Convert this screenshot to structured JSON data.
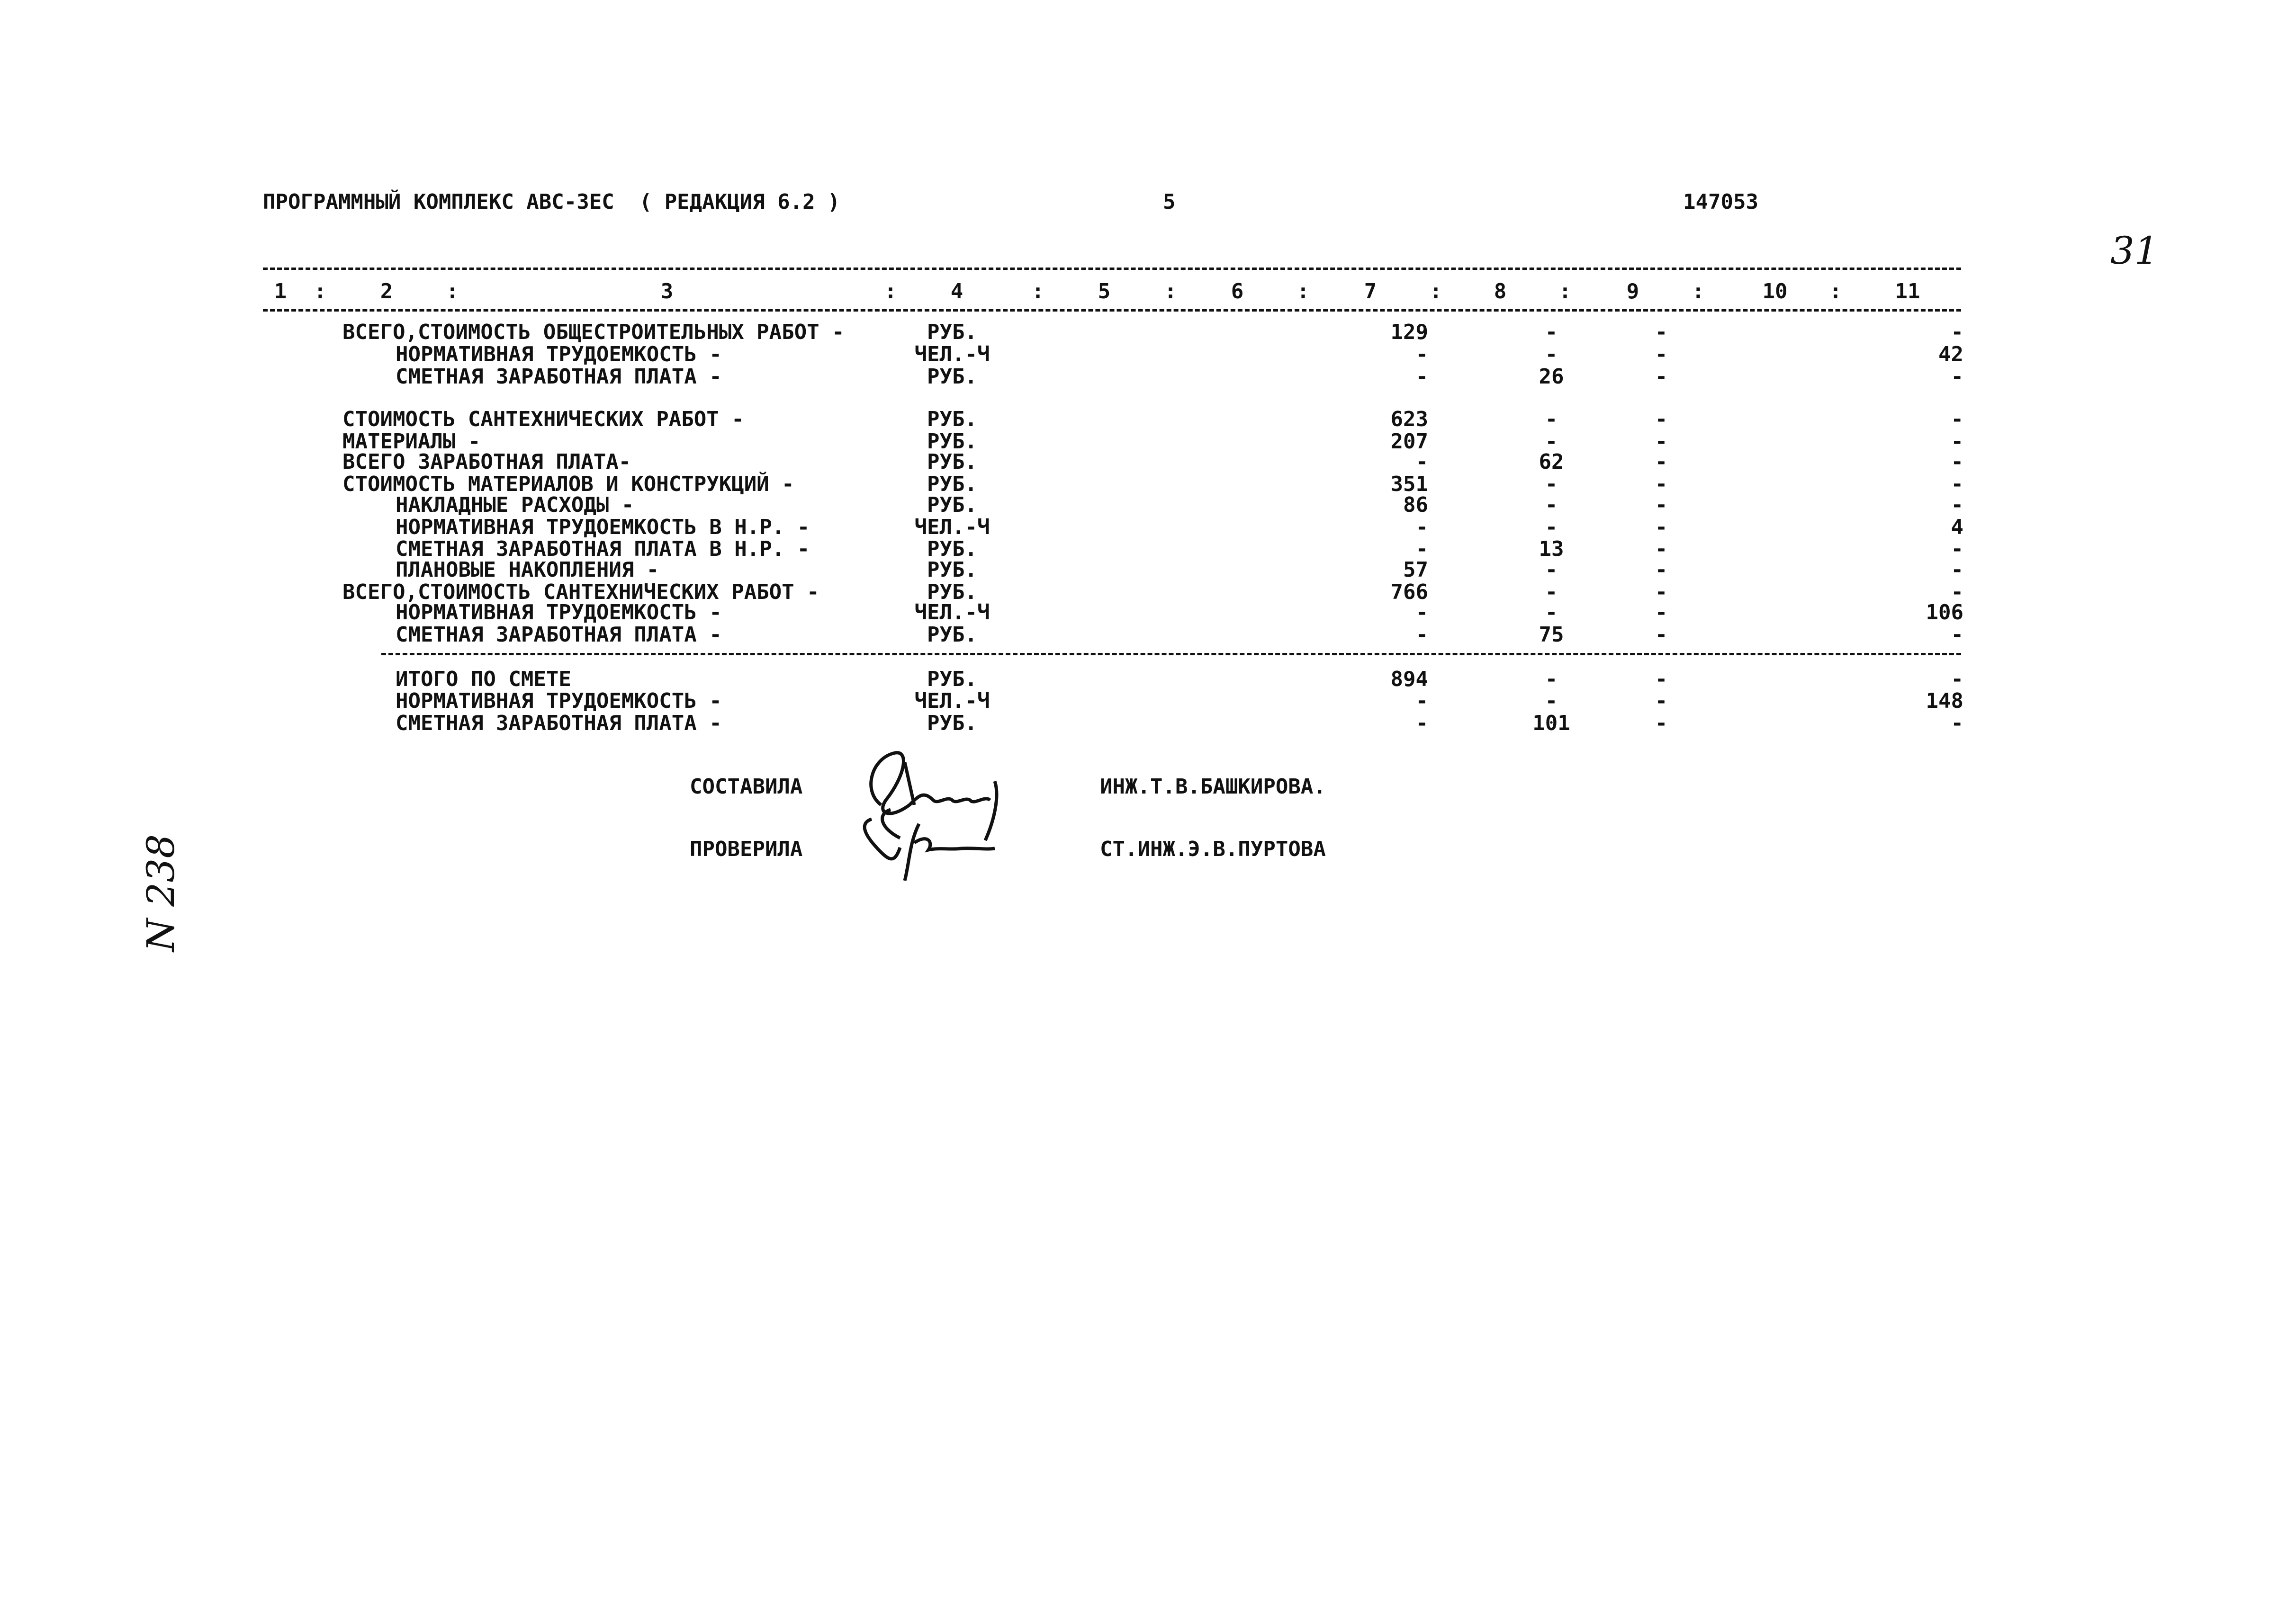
{
  "header": {
    "program": "ПРОГРАММНЫЙ КОМПЛЕКС АВС-3ЕС  ( РЕДАКЦИЯ 6.2 )",
    "page": "5",
    "code": "147053",
    "sheet_handwritten": "31"
  },
  "table": {
    "columns": [
      "1",
      "2",
      "3",
      "4",
      "5",
      "6",
      "7",
      "8",
      "9",
      "10",
      "11"
    ],
    "rows": [
      {
        "indent": false,
        "label": "ВСЕГО,СТОИМОСТЬ ОБЩЕСТРОИТЕЛЬНЫХ РАБОТ -",
        "unit": "РУБ.",
        "c7": "129",
        "c8": "-",
        "c9": "-",
        "c11": "-"
      },
      {
        "indent": true,
        "label": "НОРМАТИВНАЯ ТРУДОЕМКОСТЬ -",
        "unit": "ЧЕЛ.-Ч",
        "c7": "-",
        "c8": "-",
        "c9": "-",
        "c11": "42"
      },
      {
        "indent": true,
        "label": "СМЕТНАЯ ЗАРАБОТНАЯ ПЛАТА -",
        "unit": "РУБ.",
        "c7": "-",
        "c8": "26",
        "c9": "-",
        "c11": "-"
      },
      {
        "indent": false,
        "label": "СТОИМОСТЬ САНТЕХНИЧЕСКИХ РАБОТ -",
        "unit": "РУБ.",
        "c7": "623",
        "c8": "-",
        "c9": "-",
        "c11": "-"
      },
      {
        "indent": false,
        "label": "МАТЕРИАЛЫ -",
        "unit": "РУБ.",
        "c7": "207",
        "c8": "-",
        "c9": "-",
        "c11": "-"
      },
      {
        "indent": false,
        "label": "ВСЕГО ЗАРАБОТНАЯ ПЛАТА-",
        "unit": "РУБ.",
        "c7": "-",
        "c8": "62",
        "c9": "-",
        "c11": "-"
      },
      {
        "indent": false,
        "label": "СТОИМОСТЬ МАТЕРИАЛОВ И КОНСТРУКЦИЙ -",
        "unit": "РУБ.",
        "c7": "351",
        "c8": "-",
        "c9": "-",
        "c11": "-"
      },
      {
        "indent": true,
        "label": "НАКЛАДНЫЕ РАСХОДЫ -",
        "unit": "РУБ.",
        "c7": "86",
        "c8": "-",
        "c9": "-",
        "c11": "-"
      },
      {
        "indent": true,
        "label": "НОРМАТИВНАЯ ТРУДОЕМКОСТЬ В Н.Р. -",
        "unit": "ЧЕЛ.-Ч",
        "c7": "-",
        "c8": "-",
        "c9": "-",
        "c11": "4"
      },
      {
        "indent": true,
        "label": "СМЕТНАЯ ЗАРАБОТНАЯ ПЛАТА В Н.Р. -",
        "unit": "РУБ.",
        "c7": "-",
        "c8": "13",
        "c9": "-",
        "c11": "-"
      },
      {
        "indent": true,
        "label": "ПЛАНОВЫЕ НАКОПЛЕНИЯ -",
        "unit": "РУБ.",
        "c7": "57",
        "c8": "-",
        "c9": "-",
        "c11": "-"
      },
      {
        "indent": false,
        "label": "ВСЕГО,СТОИМОСТЬ САНТЕХНИЧЕСКИХ РАБОТ -",
        "unit": "РУБ.",
        "c7": "766",
        "c8": "-",
        "c9": "-",
        "c11": "-"
      },
      {
        "indent": true,
        "label": "НОРМАТИВНАЯ ТРУДОЕМКОСТЬ -",
        "unit": "ЧЕЛ.-Ч",
        "c7": "-",
        "c8": "-",
        "c9": "-",
        "c11": "106"
      },
      {
        "indent": true,
        "label": "СМЕТНАЯ ЗАРАБОТНАЯ ПЛАТА -",
        "unit": "РУБ.",
        "c7": "-",
        "c8": "75",
        "c9": "-",
        "c11": "-"
      }
    ],
    "totals": [
      {
        "indent": true,
        "label": "ИТОГО ПО СМЕТЕ",
        "unit": "РУБ.",
        "c7": "894",
        "c8": "-",
        "c9": "-",
        "c11": "-"
      },
      {
        "indent": true,
        "label": "НОРМАТИВНАЯ ТРУДОЕМКОСТЬ -",
        "unit": "ЧЕЛ.-Ч",
        "c7": "-",
        "c8": "-",
        "c9": "-",
        "c11": "148"
      },
      {
        "indent": true,
        "label": "СМЕТНАЯ ЗАРАБОТНАЯ ПЛАТА -",
        "unit": "РУБ.",
        "c7": "-",
        "c8": "101",
        "c9": "-",
        "c11": "-"
      }
    ]
  },
  "signatures": {
    "compiled_label": "СОСТАВИЛА",
    "compiled_name": "ИНЖ.Т.В.БАШКИРОВА.",
    "checked_label": "ПРОВЕРИЛА",
    "checked_name": "СТ.ИНЖ.Э.В.ПУРТОВА"
  },
  "margin_note": "N 238"
}
